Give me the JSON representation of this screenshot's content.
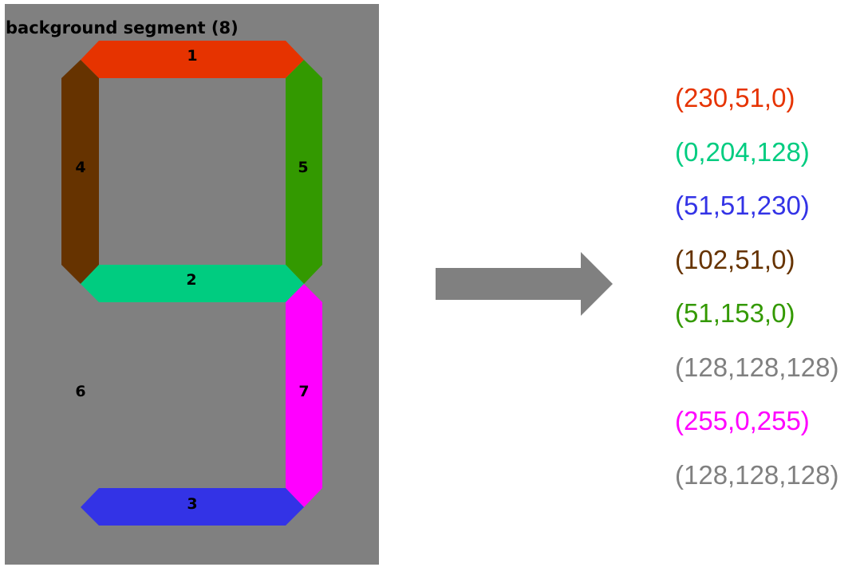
{
  "panel": {
    "title": "background segment (8)",
    "background_color": "#808080"
  },
  "segments": [
    {
      "id": "1",
      "color": "#e63300",
      "position": "top"
    },
    {
      "id": "2",
      "color": "#00cc80",
      "position": "middle"
    },
    {
      "id": "3",
      "color": "#3333e6",
      "position": "bottom"
    },
    {
      "id": "4",
      "color": "#663300",
      "position": "upper-left"
    },
    {
      "id": "5",
      "color": "#339900",
      "position": "upper-right"
    },
    {
      "id": "6",
      "color": "#808080",
      "position": "lower-left"
    },
    {
      "id": "7",
      "color": "#ff00ff",
      "position": "lower-right"
    }
  ],
  "arrow": {
    "color": "#808080"
  },
  "color_values": [
    {
      "text": "(230,51,0)",
      "color": "#e63300"
    },
    {
      "text": "(0,204,128)",
      "color": "#00cc80"
    },
    {
      "text": "(51,51,230)",
      "color": "#3333e6"
    },
    {
      "text": "(102,51,0)",
      "color": "#663300"
    },
    {
      "text": "(51,153,0)",
      "color": "#339900"
    },
    {
      "text": "(128,128,128)",
      "color": "#808080"
    },
    {
      "text": "(255,0,255)",
      "color": "#ff00ff"
    },
    {
      "text": "(128,128,128)",
      "color": "#808080"
    }
  ]
}
